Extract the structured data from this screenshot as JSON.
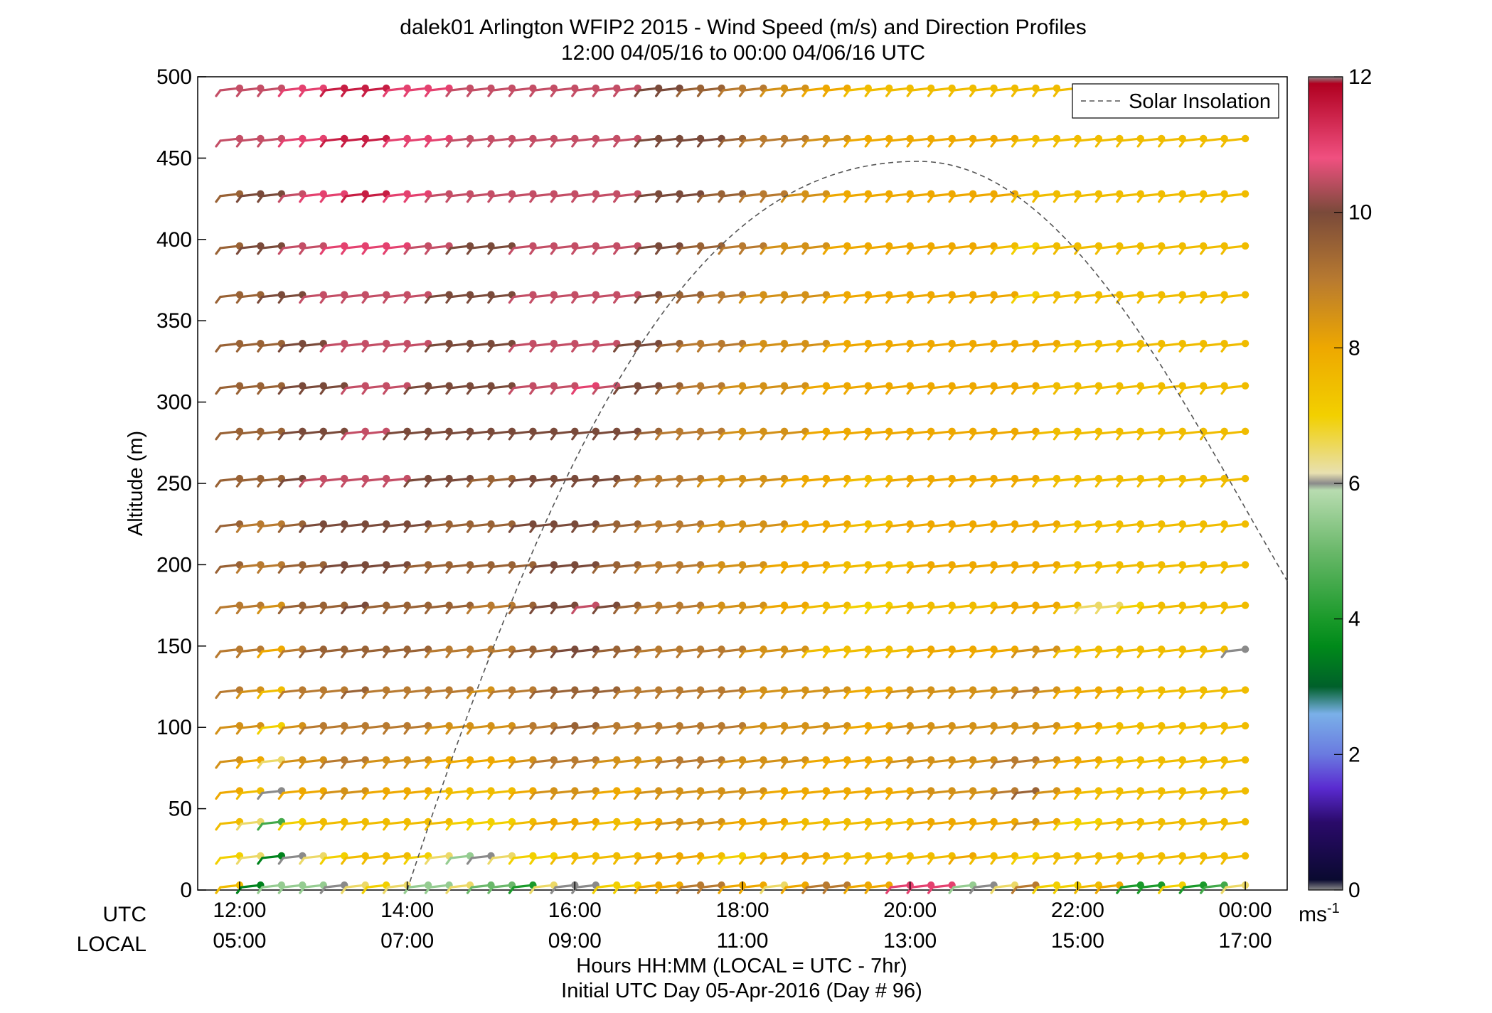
{
  "title": "dalek01 Arlington WFIP2 2015 - Wind Speed (m/s) and Direction Profiles",
  "subtitle": "12:00 04/05/16 to 00:00 04/06/16  UTC",
  "chart_data": {
    "type": "scatter",
    "ylabel": "Altitude (m)",
    "xlabel": "Hours HH:MM  (LOCAL = UTC - 7hr)",
    "xlabel2": "Initial UTC Day 05-Apr-2016 (Day # 96)",
    "ylim": [
      0,
      500
    ],
    "yticks": [
      "0",
      "50",
      "100",
      "150",
      "200",
      "250",
      "300",
      "350",
      "400",
      "450",
      "500"
    ],
    "xlim_hours_utc": [
      11.5,
      24.5
    ],
    "xtick_row_labels": {
      "utc": "UTC",
      "local": "LOCAL"
    },
    "xticks_utc": [
      "12:00",
      "14:00",
      "16:00",
      "18:00",
      "20:00",
      "22:00",
      "00:00"
    ],
    "xticks_local": [
      "05:00",
      "07:00",
      "09:00",
      "11:00",
      "13:00",
      "15:00",
      "17:00"
    ],
    "altitudes_m": [
      3,
      21,
      42,
      61,
      80,
      101,
      123,
      148,
      175,
      200,
      225,
      253,
      282,
      310,
      336,
      366,
      396,
      428,
      462,
      493
    ],
    "time_step_hours": 0.25,
    "start_hour_utc": 12.0,
    "barb_direction": "westerly winds (barbs pointing to upper-right)",
    "wind_speed_rows_ms": [
      [
        7.5,
        3.5,
        5.5,
        5.5,
        5.5,
        6,
        6.5,
        7,
        6.5,
        5.5,
        5.5,
        6.5,
        5,
        5,
        4,
        6.5,
        6,
        6,
        7,
        7,
        8,
        8,
        9,
        9,
        8,
        8,
        6.5,
        8,
        9,
        9,
        8,
        8,
        11,
        11,
        11,
        5.5,
        6,
        6.5,
        9,
        7,
        7,
        7.5,
        8,
        4,
        4,
        7,
        4,
        4.5,
        6.5
      ],
      [
        7,
        6.5,
        3.5,
        6,
        6.5,
        7,
        7.5,
        7.5,
        7.5,
        7,
        6.5,
        5.5,
        6,
        6.5,
        7,
        7,
        7.5,
        7.5,
        7.5,
        7.5,
        8,
        8,
        8,
        7.5,
        7,
        7.5,
        8,
        8,
        8,
        7.5,
        7.5,
        7.5,
        7.5,
        7.5,
        7.5,
        8,
        7.5,
        7.5,
        7,
        7.5,
        7.5,
        7.5,
        7.5,
        7.5,
        7.5,
        7.5,
        7.5,
        7.5,
        7.5
      ],
      [
        7.5,
        6.5,
        4.5,
        7,
        7.5,
        7.5,
        7.5,
        7.5,
        7.5,
        7.5,
        7.5,
        7,
        7,
        7,
        7.5,
        8,
        8,
        8,
        7.5,
        7.5,
        8,
        8.5,
        8.5,
        8.5,
        8,
        8,
        8,
        7.5,
        7.5,
        7.5,
        7.5,
        7.5,
        7.5,
        8,
        8,
        8,
        8,
        8,
        8.5,
        8,
        7,
        7,
        7.5,
        7.5,
        7.5,
        7.5,
        7.5,
        7.5,
        7.5
      ],
      [
        8,
        7.5,
        6,
        8,
        8,
        8.5,
        8.5,
        8,
        8,
        8,
        7.5,
        7.5,
        7.5,
        7.5,
        8,
        8.5,
        8.5,
        8.5,
        8,
        8,
        8.5,
        8.5,
        8.5,
        8.5,
        8.5,
        8.5,
        8,
        8,
        8,
        8,
        8,
        8,
        8,
        8.5,
        8.5,
        8.5,
        8.5,
        9,
        9.5,
        8.5,
        8,
        7.5,
        7.5,
        7.5,
        7.5,
        7.5,
        7.5,
        7.5,
        7.5
      ],
      [
        8.5,
        8,
        6.5,
        8.5,
        8.5,
        9,
        9,
        8.5,
        8.5,
        8.5,
        8,
        8,
        8,
        8,
        8.5,
        9,
        9,
        9,
        8.5,
        8.5,
        8.5,
        9,
        9,
        9,
        8.5,
        8.5,
        8.5,
        8.5,
        8,
        8,
        8,
        8,
        8.5,
        8.5,
        8.5,
        8.5,
        8.5,
        9,
        9,
        8.5,
        8,
        8,
        7.5,
        7.5,
        7.5,
        7.5,
        7.5,
        7.5,
        7.5
      ],
      [
        8.5,
        8.5,
        7,
        8.5,
        9,
        9,
        9,
        9,
        9,
        9,
        8.5,
        8.5,
        8.5,
        8.5,
        9,
        9,
        9.5,
        9.5,
        9,
        9,
        9,
        9,
        9,
        9,
        9,
        8.5,
        8.5,
        8.5,
        8.5,
        8.5,
        8,
        8,
        8.5,
        8.5,
        8.5,
        8.5,
        8.5,
        8.5,
        8.5,
        8.5,
        8,
        8,
        7.5,
        7.5,
        7.5,
        7.5,
        7.5,
        7.5,
        7.5
      ],
      [
        9,
        8.5,
        7.5,
        9,
        9,
        9,
        9.5,
        9,
        9,
        9,
        9,
        9,
        8.5,
        9,
        9,
        9.5,
        9.5,
        9.5,
        9.5,
        9,
        9,
        9,
        9,
        9,
        9,
        8.5,
        8.5,
        8.5,
        8.5,
        8.5,
        8,
        8,
        8.5,
        8.5,
        8.5,
        8.5,
        8.5,
        8.5,
        9,
        8.5,
        8,
        8,
        8,
        7.5,
        7.5,
        7.5,
        7.5,
        7.5,
        7.5
      ],
      [
        9,
        9,
        8,
        9,
        9.5,
        9.5,
        9.5,
        9.5,
        9.5,
        9.5,
        9,
        9,
        9,
        9,
        9.5,
        9.5,
        10,
        10,
        9.5,
        9.5,
        9,
        9,
        9,
        9,
        9,
        8.5,
        8.5,
        8.5,
        7.5,
        7.5,
        7.5,
        7.5,
        7.5,
        8,
        8,
        8,
        8,
        8,
        8.5,
        8.5,
        7.5,
        7.5,
        7.5,
        7.5,
        7.5,
        7.5,
        7.5,
        7.5,
        6
      ],
      [
        9,
        9,
        8.5,
        9.5,
        9.5,
        9.5,
        10,
        9.5,
        9.5,
        9.5,
        9.5,
        9.5,
        9,
        9,
        9.5,
        10,
        10,
        10.5,
        10,
        9.5,
        9,
        9,
        9,
        8.5,
        8.5,
        8.5,
        8,
        8,
        7.5,
        7.5,
        7,
        7,
        7.5,
        7.5,
        7.5,
        7.5,
        7.5,
        8,
        8,
        8,
        7.5,
        6.5,
        6.5,
        7,
        7.5,
        7.5,
        7.5,
        7.5,
        7.5
      ],
      [
        9.5,
        9,
        9,
        9.5,
        9.5,
        10,
        10,
        10,
        10,
        9.5,
        9.5,
        9.5,
        9.5,
        9.5,
        9.5,
        10,
        10,
        10,
        9.5,
        9.5,
        9,
        9,
        9,
        8.5,
        8.5,
        8.5,
        8,
        8,
        8,
        7.5,
        7.5,
        7.5,
        7.5,
        8,
        8,
        8,
        8,
        8,
        8,
        8,
        7.5,
        7.5,
        7.5,
        7.5,
        7.5,
        7.5,
        7.5,
        7.5,
        7.5
      ],
      [
        9.5,
        9,
        9,
        9.5,
        10,
        10,
        10,
        10,
        10,
        10,
        9.5,
        9.5,
        9.5,
        9.5,
        10,
        10,
        10,
        10,
        9.5,
        9.5,
        9,
        9,
        9,
        8.5,
        8.5,
        8.5,
        8.5,
        8,
        8,
        8,
        7.5,
        7.5,
        8,
        8,
        8,
        8,
        8,
        8,
        8,
        8,
        7.5,
        7.5,
        7.5,
        7.5,
        7.5,
        7.5,
        7.5,
        7.5,
        7.5
      ],
      [
        9.5,
        9.5,
        9.5,
        10,
        10.5,
        10.5,
        10.5,
        10.5,
        10.5,
        10,
        10,
        10,
        9.5,
        9.5,
        10,
        10,
        10,
        10,
        10,
        9.5,
        9,
        9,
        9,
        8.5,
        8.5,
        8.5,
        8.5,
        8,
        8,
        8,
        7.5,
        7.5,
        8,
        8,
        8,
        8,
        8,
        8,
        8,
        7.5,
        7.5,
        7.5,
        7.5,
        7.5,
        7.5,
        7.5,
        7.5,
        7.5,
        7.5
      ],
      [
        9.5,
        9.5,
        9.5,
        10,
        10,
        10,
        10.5,
        10.5,
        10,
        10,
        10,
        10,
        10,
        10,
        10,
        10,
        10,
        10,
        10,
        10,
        9.5,
        9,
        9,
        9,
        8.5,
        8.5,
        8.5,
        8.5,
        8,
        8,
        8,
        8,
        8,
        8,
        8,
        8,
        8,
        8,
        8,
        7.5,
        7.5,
        7.5,
        7.5,
        7.5,
        7.5,
        7.5,
        7.5,
        7.5,
        7.5
      ],
      [
        9.5,
        9.5,
        9.5,
        10,
        10,
        10,
        10.5,
        10.5,
        10.5,
        10,
        10,
        10,
        10,
        10,
        10.5,
        10.5,
        10.5,
        11,
        10.5,
        10,
        10,
        9.5,
        9,
        9,
        8.5,
        8.5,
        8.5,
        8.5,
        8,
        8,
        8,
        8,
        8,
        8,
        8,
        8,
        8,
        8,
        8,
        7.5,
        7.5,
        7.5,
        7.5,
        7.5,
        7.5,
        7.5,
        7.5,
        7.5,
        7.5
      ],
      [
        9.5,
        9.5,
        9.5,
        10,
        10,
        10.5,
        10.5,
        10.5,
        10.5,
        10.5,
        10,
        10,
        10,
        10,
        10.5,
        10.5,
        10.5,
        10.5,
        10.5,
        10,
        10,
        9.5,
        9,
        9,
        9,
        8.5,
        8.5,
        8.5,
        8.5,
        8,
        8,
        8,
        8,
        8,
        8,
        8,
        8,
        8,
        8,
        8,
        7.5,
        7.5,
        7.5,
        7.5,
        7.5,
        7.5,
        7.5,
        7.5,
        7.5
      ],
      [
        9.5,
        9.5,
        10,
        10,
        10.5,
        10.5,
        10.5,
        10.5,
        10.5,
        10.5,
        10,
        10,
        10,
        10,
        10.5,
        10.5,
        10.5,
        10.5,
        10.5,
        10.5,
        10,
        9.5,
        9.5,
        9,
        9,
        8.5,
        8.5,
        8.5,
        8.5,
        8,
        8,
        8,
        8,
        8,
        8,
        8,
        8,
        8,
        7,
        7.5,
        7.5,
        7.5,
        7.5,
        7.5,
        7.5,
        7.5,
        7.5,
        7.5,
        7.5
      ],
      [
        9.5,
        10,
        10,
        10.5,
        10.5,
        11,
        11,
        11,
        11,
        10.5,
        10.5,
        10,
        10,
        10,
        10.5,
        10.5,
        10.5,
        10.5,
        10.5,
        10.5,
        10,
        10,
        9.5,
        9.5,
        9,
        9,
        8.5,
        8.5,
        8.5,
        8,
        8,
        8,
        8,
        8,
        8,
        8,
        8,
        7.5,
        7,
        7.5,
        7.5,
        7.5,
        7.5,
        7.5,
        7.5,
        7.5,
        7.5,
        7.5,
        7.5
      ],
      [
        9.5,
        10,
        10,
        10.5,
        11,
        11,
        11.5,
        11.5,
        11,
        11,
        10.5,
        10.5,
        10.5,
        10.5,
        10.5,
        10.5,
        10.5,
        10.5,
        10.5,
        10.5,
        10,
        10,
        10,
        9.5,
        9.5,
        9,
        9,
        8.5,
        8.5,
        8,
        8,
        8,
        8,
        8,
        8,
        8,
        8,
        8,
        7.5,
        7.5,
        7.5,
        7.5,
        7.5,
        7.5,
        7.5,
        7.5,
        7.5,
        7.5,
        7.5
      ],
      [
        10.5,
        10.5,
        10.5,
        11,
        11,
        11.5,
        11.5,
        11.5,
        11,
        11,
        11,
        10.5,
        10.5,
        10.5,
        10.5,
        10.5,
        10.5,
        10.5,
        10.5,
        10.5,
        10,
        10,
        10,
        10,
        9.5,
        9,
        9,
        9,
        8.5,
        8.5,
        8,
        8,
        8,
        8,
        8,
        8,
        8,
        8,
        7.5,
        7.5,
        7.5,
        7.5,
        7.5,
        7.5,
        7.5,
        7.5,
        7.5,
        7.5,
        7.5
      ],
      [
        10.5,
        10.5,
        10.5,
        11,
        11,
        11.5,
        11.5,
        11.5,
        11,
        11,
        11,
        10.5,
        10.5,
        10.5,
        10.5,
        10.5,
        10.5,
        10.5,
        10.5,
        10.5,
        10,
        10,
        9.5,
        9.5,
        9,
        9,
        8.5,
        8.5,
        8,
        8,
        7.5,
        7.5,
        7.5,
        7.5,
        7.5,
        7.5,
        7.5,
        7.5,
        7.5,
        7.5,
        7.5,
        7.5,
        7.5,
        7.5,
        7.5,
        7.5,
        7.5,
        7.5,
        7.5
      ]
    ],
    "solar_insolation": {
      "legend_label": "Solar Insolation",
      "style": "dashed",
      "color": "#555555",
      "sunrise_hour_utc": 14.0,
      "peak_hour_utc": 20.1,
      "peak_altitude_m": 448,
      "end_hour_utc": 24.5,
      "end_altitude_m": 190
    },
    "colorbar": {
      "min": 0,
      "max": 12,
      "ticks": [
        "0",
        "2",
        "4",
        "6",
        "8",
        "10",
        "12"
      ],
      "unit_label": "ms",
      "unit_exponent": "-1",
      "stops": [
        {
          "v": 0.0,
          "c": "#8a8a8a"
        },
        {
          "v": 0.15,
          "c": "#0a0a30"
        },
        {
          "v": 1.0,
          "c": "#2a0a6a"
        },
        {
          "v": 1.5,
          "c": "#5a2ad0"
        },
        {
          "v": 2.0,
          "c": "#6a7ae0"
        },
        {
          "v": 2.6,
          "c": "#7ab0e8"
        },
        {
          "v": 3.0,
          "c": "#00602a"
        },
        {
          "v": 3.6,
          "c": "#008a1a"
        },
        {
          "v": 4.0,
          "c": "#1a9a2a"
        },
        {
          "v": 5.0,
          "c": "#6ab86a"
        },
        {
          "v": 5.9,
          "c": "#b8dcb0"
        },
        {
          "v": 6.0,
          "c": "#8a8a8a"
        },
        {
          "v": 6.15,
          "c": "#e8e0b0"
        },
        {
          "v": 7.0,
          "c": "#f2d000"
        },
        {
          "v": 8.0,
          "c": "#eea800"
        },
        {
          "v": 9.0,
          "c": "#b87a30"
        },
        {
          "v": 10.0,
          "c": "#7a4a3a"
        },
        {
          "v": 10.8,
          "c": "#f05080"
        },
        {
          "v": 11.9,
          "c": "#b00020"
        },
        {
          "v": 12.0,
          "c": "#8a8a8a"
        }
      ]
    }
  }
}
